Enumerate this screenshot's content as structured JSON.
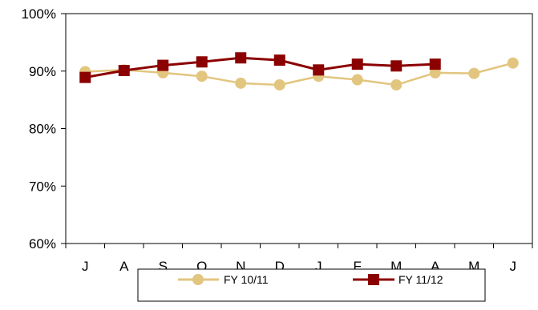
{
  "chart_data": {
    "type": "line",
    "categories": [
      "J",
      "A",
      "S",
      "O",
      "N",
      "D",
      "J",
      "F",
      "M",
      "A",
      "M",
      "J"
    ],
    "ylim": [
      60,
      100
    ],
    "yticks": [
      60,
      70,
      80,
      90,
      100
    ],
    "ytick_labels": [
      "60%",
      "70%",
      "80%",
      "90%",
      "100%"
    ],
    "grid": false,
    "legend_position": "bottom",
    "series": [
      {
        "name": "FY 10/11",
        "color": "#E2C57F",
        "marker": "circle",
        "values": [
          89.9,
          90.2,
          89.7,
          89.1,
          87.9,
          87.6,
          89.1,
          88.5,
          87.6,
          89.7,
          89.6,
          91.4
        ]
      },
      {
        "name": "FY 11/12",
        "color": "#8B0000",
        "marker": "square",
        "values": [
          88.9,
          90.1,
          91.0,
          91.6,
          92.3,
          91.9,
          90.2,
          91.2,
          90.9,
          91.2,
          null,
          null
        ]
      }
    ]
  }
}
